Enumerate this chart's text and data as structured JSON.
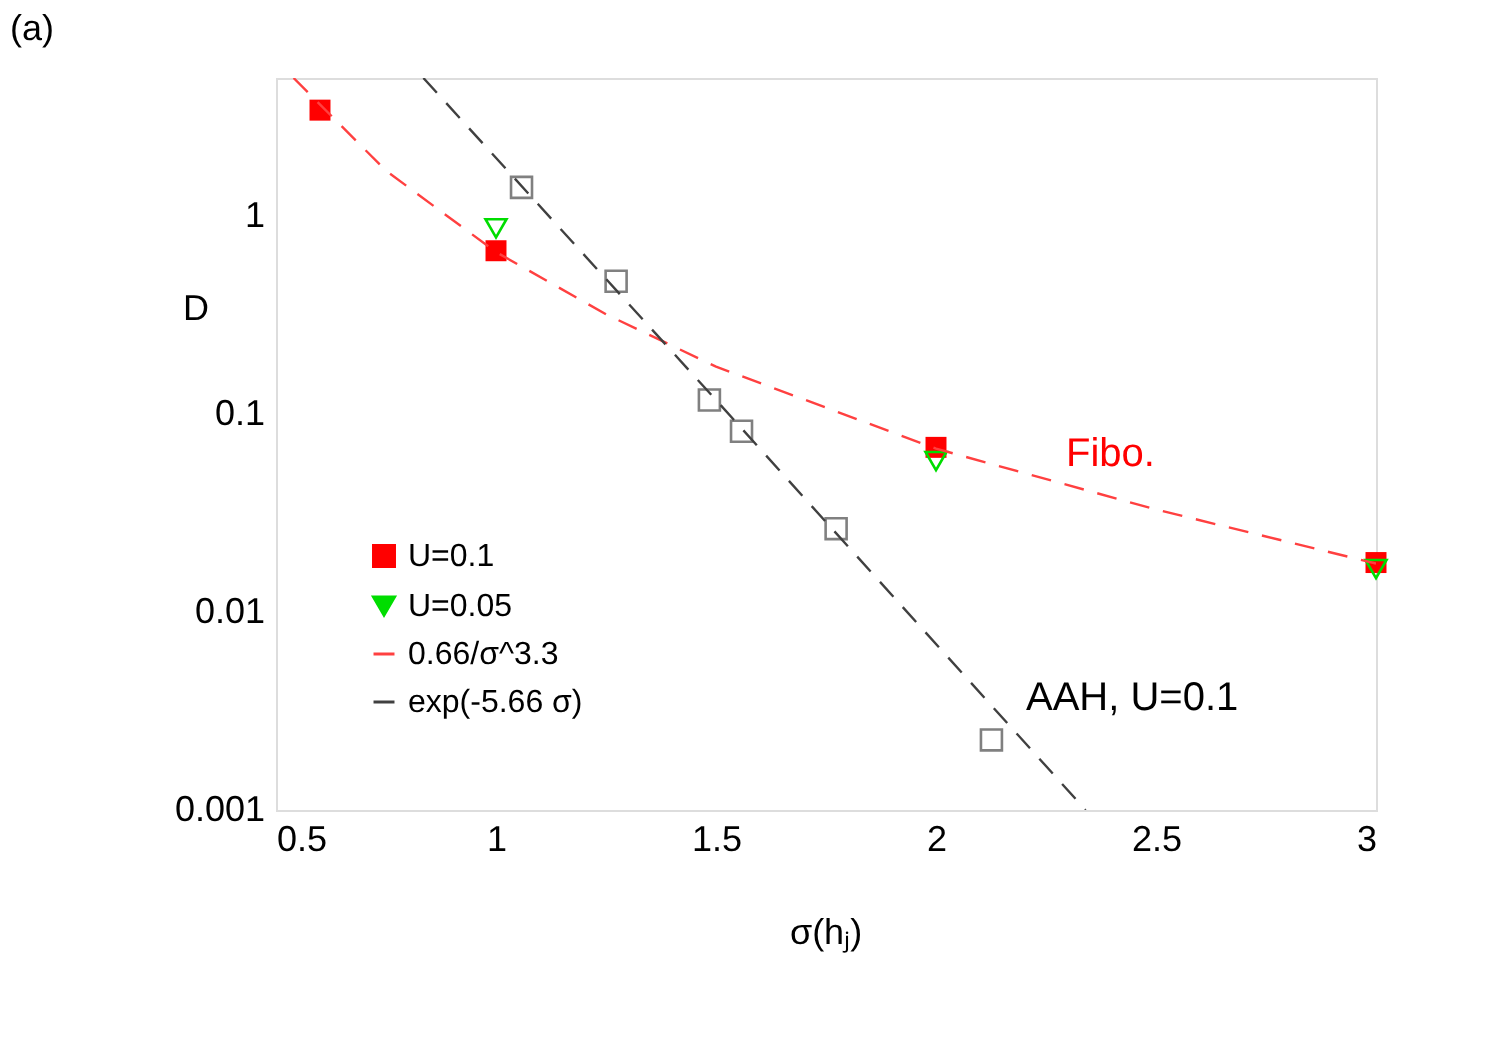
{
  "chart_data": {
    "type": "scatter",
    "xlabel": "σ(hⱼ)",
    "ylabel": "D",
    "xlim": [
      0.5,
      3.0
    ],
    "xticks": [
      0.5,
      1,
      1.5,
      2,
      2.5,
      3
    ],
    "ylim": [
      0.001,
      5
    ],
    "yticks": [
      0.001,
      0.01,
      0.1,
      1
    ],
    "log": "y",
    "grid": false,
    "legend": "bottom left",
    "series": [
      {
        "name": "U=0.1",
        "marker": "square",
        "color": "#ff0000",
        "x": [
          0.6,
          1.0,
          2.0,
          3.0
        ],
        "values": [
          3.44,
          0.67,
          0.068,
          0.0178
        ]
      },
      {
        "name": "U=0.05",
        "marker": "triangle",
        "color": "#00dd00",
        "x": [
          1.0,
          2.0,
          3.0
        ],
        "values": [
          0.87,
          0.058,
          0.0165
        ]
      },
      {
        "marker": "square",
        "color": "#808080",
        "x": [
          1.058,
          1.273,
          1.485,
          1.558,
          1.773,
          2.126
        ],
        "values": [
          1.4,
          0.47,
          0.118,
          0.082,
          0.0264,
          0.00226
        ]
      },
      {
        "name": "0.66/σ^3.3",
        "type": "line",
        "line_style": "dashed",
        "color": "#ff4040",
        "x": [
          0.54,
          0.75,
          1.0,
          1.25,
          1.5,
          2.0,
          2.5,
          3.0
        ],
        "values": [
          5.0,
          1.7,
          0.66,
          0.32,
          0.174,
          0.067,
          0.033,
          0.0176
        ]
      },
      {
        "name": "exp(-5.66 σ)",
        "type": "line",
        "line_style": "dashed",
        "color": "#404040",
        "x": [
          0.835,
          1.5,
          2.34
        ],
        "values": [
          5.0,
          0.118,
          0.001
        ]
      }
    ],
    "annotations": [
      "(a)",
      "Fibo.",
      "AAH, U=0.1"
    ]
  }
}
